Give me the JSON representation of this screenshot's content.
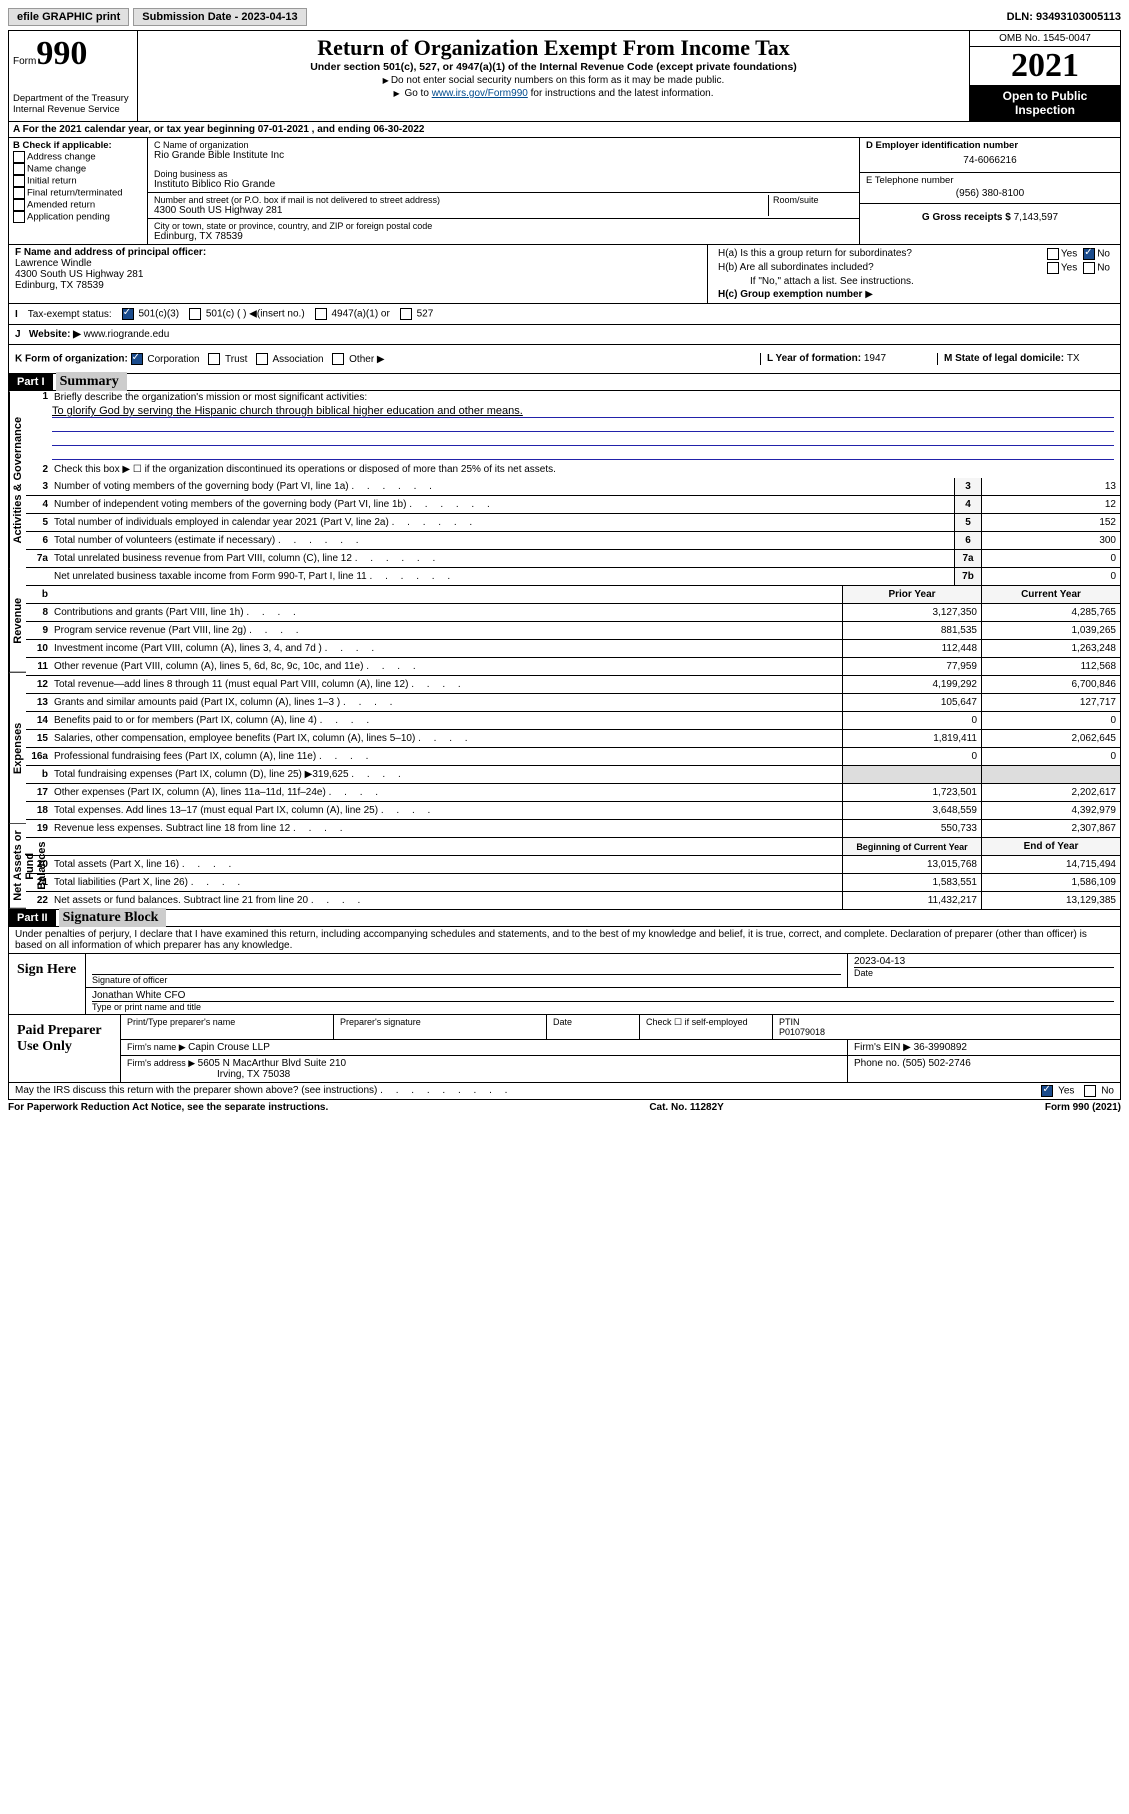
{
  "topbar": {
    "efile": "efile GRAPHIC print",
    "subdate_label": "Submission Date - ",
    "subdate": "2023-04-13",
    "dln_label": "DLN: ",
    "dln": "93493103005113"
  },
  "header": {
    "form_label": "Form",
    "form_num": "990",
    "dept": "Department of the Treasury",
    "irs": "Internal Revenue Service",
    "title": "Return of Organization Exempt From Income Tax",
    "sub": "Under section 501(c), 527, or 4947(a)(1) of the Internal Revenue Code (except private foundations)",
    "instr1": "Do not enter social security numbers on this form as it may be made public.",
    "instr2a": "Go to ",
    "instr2_link": "www.irs.gov/Form990",
    "instr2b": " for instructions and the latest information.",
    "omb": "OMB No. 1545-0047",
    "year": "2021",
    "open": "Open to Public Inspection"
  },
  "lineA": "For the 2021 calendar year, or tax year beginning 07-01-2021   , and ending 06-30-2022",
  "B": {
    "title": "B Check if applicable:",
    "items": [
      "Address change",
      "Name change",
      "Initial return",
      "Final return/terminated",
      "Amended return",
      "Application pending"
    ]
  },
  "C": {
    "name_label": "C Name of organization",
    "name": "Rio Grande Bible Institute Inc",
    "dba_label": "Doing business as",
    "dba": "Instituto Biblico Rio Grande",
    "street_label": "Number and street (or P.O. box if mail is not delivered to street address)",
    "room_label": "Room/suite",
    "street": "4300 South US Highway 281",
    "city_label": "City or town, state or province, country, and ZIP or foreign postal code",
    "city": "Edinburg, TX  78539"
  },
  "D": {
    "label": "D Employer identification number",
    "value": "74-6066216"
  },
  "E": {
    "label": "E Telephone number",
    "value": "(956) 380-8100"
  },
  "G": {
    "label": "G Gross receipts $ ",
    "value": "7,143,597"
  },
  "F": {
    "label": "F  Name and address of principal officer:",
    "name": "Lawrence Windle",
    "addr1": "4300 South US Highway 281",
    "addr2": "Edinburg, TX  78539"
  },
  "H": {
    "a": "H(a)  Is this a group return for subordinates?",
    "b": "H(b)  Are all subordinates included?",
    "b_note": "If \"No,\" attach a list. See instructions.",
    "c": "H(c)  Group exemption number",
    "yes": "Yes",
    "no": "No"
  },
  "I": {
    "label": "Tax-exempt status:",
    "c3": "501(c)(3)",
    "c": "501(c) (  )  ◀(insert no.)",
    "a1": "4947(a)(1) or",
    "s527": "527"
  },
  "J": {
    "label": "Website:",
    "value": "www.riogrande.edu"
  },
  "K": {
    "label": "K Form of organization:",
    "corp": "Corporation",
    "trust": "Trust",
    "assoc": "Association",
    "other": "Other"
  },
  "L": {
    "label": "L Year of formation: ",
    "value": "1947"
  },
  "M": {
    "label": "M State of legal domicile: ",
    "value": "TX"
  },
  "part1": {
    "hdr": "Part I",
    "title": "Summary"
  },
  "summary": {
    "line1": "Briefly describe the organization's mission or most significant activities:",
    "mission": "To glorify God by serving the Hispanic church through biblical higher education and other means.",
    "line2": "Check this box ▶ ☐  if the organization discontinued its operations or disposed of more than 25% of its net assets.",
    "rows_gov": [
      {
        "n": "3",
        "d": "Number of voting members of the governing body (Part VI, line 1a)",
        "box": "3",
        "cy": "13"
      },
      {
        "n": "4",
        "d": "Number of independent voting members of the governing body (Part VI, line 1b)",
        "box": "4",
        "cy": "12"
      },
      {
        "n": "5",
        "d": "Total number of individuals employed in calendar year 2021 (Part V, line 2a)",
        "box": "5",
        "cy": "152"
      },
      {
        "n": "6",
        "d": "Total number of volunteers (estimate if necessary)",
        "box": "6",
        "cy": "300"
      },
      {
        "n": "7a",
        "d": "Total unrelated business revenue from Part VIII, column (C), line 12",
        "box": "7a",
        "cy": "0"
      },
      {
        "n": "",
        "d": "Net unrelated business taxable income from Form 990-T, Part I, line 11",
        "box": "7b",
        "cy": "0"
      }
    ],
    "py_hdr": "Prior Year",
    "cy_hdr": "Current Year",
    "rows_rev": [
      {
        "n": "8",
        "d": "Contributions and grants (Part VIII, line 1h)",
        "py": "3,127,350",
        "cy": "4,285,765"
      },
      {
        "n": "9",
        "d": "Program service revenue (Part VIII, line 2g)",
        "py": "881,535",
        "cy": "1,039,265"
      },
      {
        "n": "10",
        "d": "Investment income (Part VIII, column (A), lines 3, 4, and 7d )",
        "py": "112,448",
        "cy": "1,263,248"
      },
      {
        "n": "11",
        "d": "Other revenue (Part VIII, column (A), lines 5, 6d, 8c, 9c, 10c, and 11e)",
        "py": "77,959",
        "cy": "112,568"
      },
      {
        "n": "12",
        "d": "Total revenue—add lines 8 through 11 (must equal Part VIII, column (A), line 12)",
        "py": "4,199,292",
        "cy": "6,700,846"
      }
    ],
    "rows_exp": [
      {
        "n": "13",
        "d": "Grants and similar amounts paid (Part IX, column (A), lines 1–3 )",
        "py": "105,647",
        "cy": "127,717"
      },
      {
        "n": "14",
        "d": "Benefits paid to or for members (Part IX, column (A), line 4)",
        "py": "0",
        "cy": "0"
      },
      {
        "n": "15",
        "d": "Salaries, other compensation, employee benefits (Part IX, column (A), lines 5–10)",
        "py": "1,819,411",
        "cy": "2,062,645"
      },
      {
        "n": "16a",
        "d": "Professional fundraising fees (Part IX, column (A), line 11e)",
        "py": "0",
        "cy": "0"
      },
      {
        "n": "b",
        "d": "Total fundraising expenses (Part IX, column (D), line 25) ▶319,625",
        "py": "",
        "cy": "",
        "shade": true
      },
      {
        "n": "17",
        "d": "Other expenses (Part IX, column (A), lines 11a–11d, 11f–24e)",
        "py": "1,723,501",
        "cy": "2,202,617"
      },
      {
        "n": "18",
        "d": "Total expenses. Add lines 13–17 (must equal Part IX, column (A), line 25)",
        "py": "3,648,559",
        "cy": "4,392,979"
      },
      {
        "n": "19",
        "d": "Revenue less expenses. Subtract line 18 from line 12",
        "py": "550,733",
        "cy": "2,307,867"
      }
    ],
    "bcy_hdr": "Beginning of Current Year",
    "eoy_hdr": "End of Year",
    "rows_net": [
      {
        "n": "20",
        "d": "Total assets (Part X, line 16)",
        "py": "13,015,768",
        "cy": "14,715,494"
      },
      {
        "n": "21",
        "d": "Total liabilities (Part X, line 26)",
        "py": "1,583,551",
        "cy": "1,586,109"
      },
      {
        "n": "22",
        "d": "Net assets or fund balances. Subtract line 21 from line 20",
        "py": "11,432,217",
        "cy": "13,129,385"
      }
    ],
    "vert_gov": "Activities & Governance",
    "vert_rev": "Revenue",
    "vert_exp": "Expenses",
    "vert_net": "Net Assets or Fund Balances"
  },
  "part2": {
    "hdr": "Part II",
    "title": "Signature Block"
  },
  "sig": {
    "decl": "Under penalties of perjury, I declare that I have examined this return, including accompanying schedules and statements, and to the best of my knowledge and belief, it is true, correct, and complete. Declaration of preparer (other than officer) is based on all information of which preparer has any knowledge.",
    "sign_here": "Sign Here",
    "sig_officer": "Signature of officer",
    "sig_date": "2023-04-13",
    "date_label": "Date",
    "name": "Jonathan White CFO",
    "name_label": "Type or print name and title"
  },
  "paid": {
    "label": "Paid Preparer Use Only",
    "h1": "Print/Type preparer's name",
    "h2": "Preparer's signature",
    "h3": "Date",
    "check_label": "Check ☐ if self-employed",
    "ptin_label": "PTIN",
    "ptin": "P01079018",
    "firm_name_label": "Firm's name   ▶ ",
    "firm_name": "Capin Crouse LLP",
    "firm_ein_label": "Firm's EIN ▶ ",
    "firm_ein": "36-3990892",
    "firm_addr_label": "Firm's address ▶ ",
    "firm_addr1": "5605 N MacArthur Blvd Suite 210",
    "firm_addr2": "Irving, TX  75038",
    "phone_label": "Phone no. ",
    "phone": "(505) 502-2746"
  },
  "discuss": {
    "q": "May the IRS discuss this return with the preparer shown above? (see instructions)",
    "yes": "Yes",
    "no": "No"
  },
  "footer": {
    "left": "For Paperwork Reduction Act Notice, see the separate instructions.",
    "mid": "Cat. No. 11282Y",
    "right": "Form 990 (2021)"
  }
}
